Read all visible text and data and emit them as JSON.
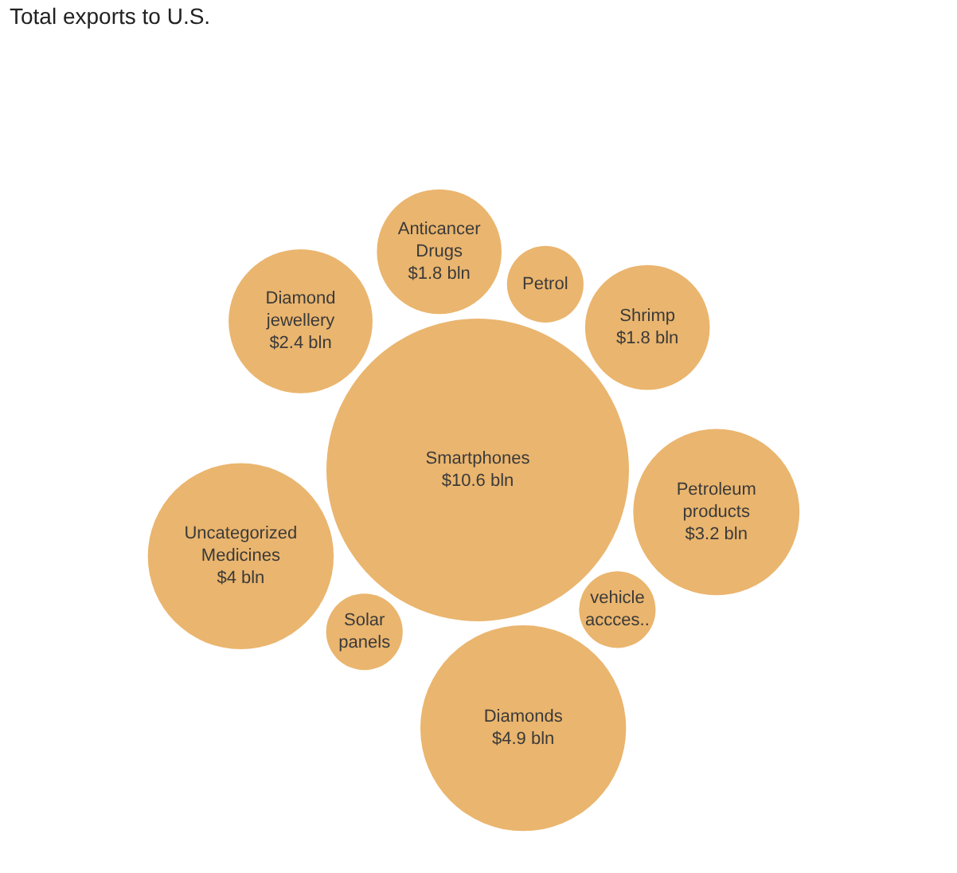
{
  "chart_data": {
    "type": "other",
    "title": "Total exports to U.S.",
    "color": "#eab56e",
    "categories": [
      "Smartphones",
      "Petroleum\nproducts",
      "Diamonds",
      "Uncategorized\nMedicines",
      "Diamond\njewellery",
      "Anticancer\nDrugs",
      "Shrimp",
      "Solar\npanels",
      "vehicle\naccces..",
      "Petrol"
    ],
    "values": [
      10.6,
      3.2,
      4.9,
      4,
      2.4,
      1.8,
      1.8,
      null,
      null,
      null
    ],
    "value_labels": [
      "$10.6 bln",
      "$3.2 bln",
      "$4.9 bln",
      "$4 bln",
      "$2.4 bln",
      "$1.8 bln",
      "$1.8 bln",
      null,
      null,
      null
    ]
  }
}
